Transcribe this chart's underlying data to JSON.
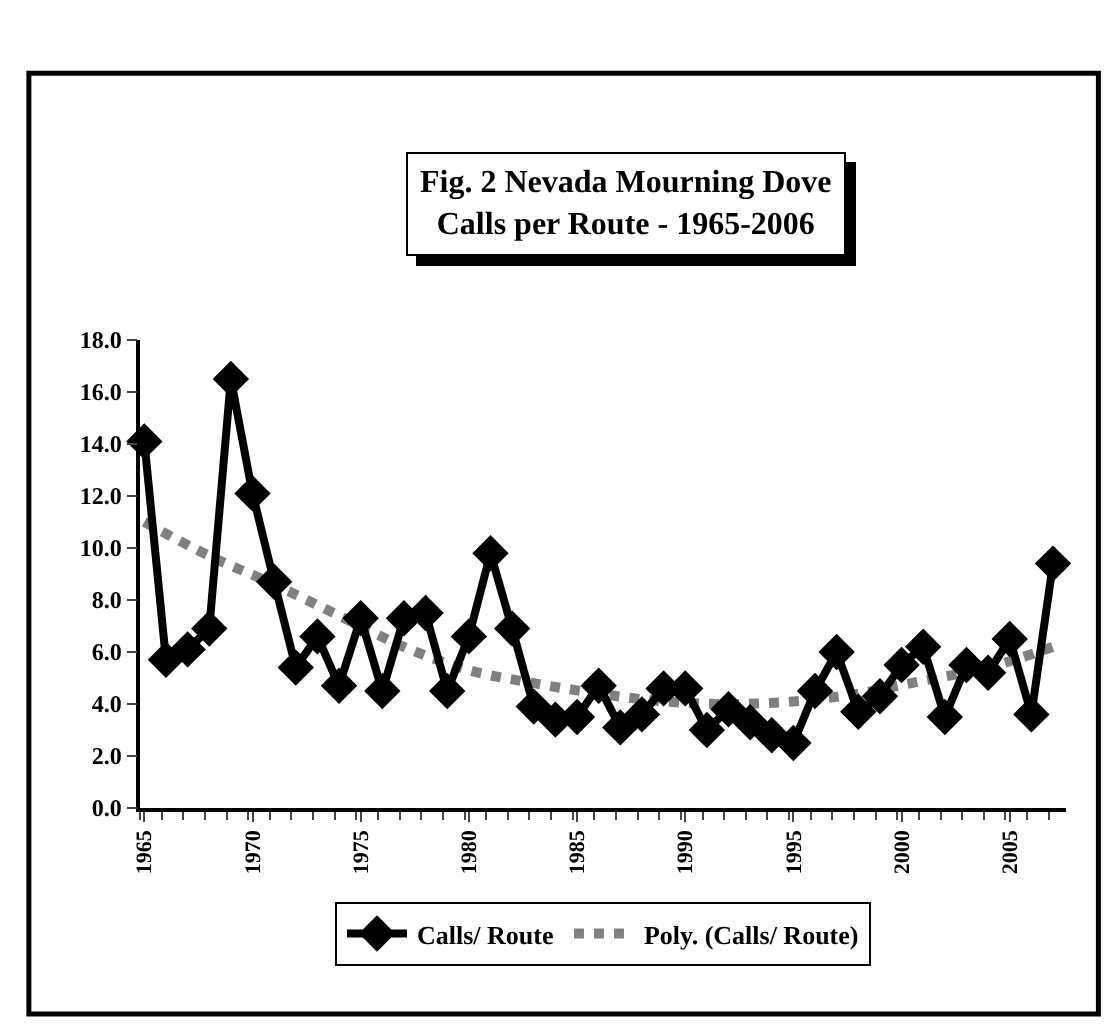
{
  "chart_data": {
    "type": "line",
    "title": "Fig. 2 Nevada Mourning Dove\nCalls per Route - 1965-2006",
    "x": [
      1965,
      1966,
      1967,
      1968,
      1969,
      1970,
      1971,
      1972,
      1973,
      1974,
      1975,
      1976,
      1977,
      1978,
      1979,
      1980,
      1981,
      1982,
      1983,
      1984,
      1985,
      1986,
      1987,
      1988,
      1989,
      1990,
      1991,
      1992,
      1993,
      1994,
      1995,
      1996,
      1997,
      1998,
      1999,
      2000,
      2001,
      2002,
      2003,
      2004,
      2005,
      2006,
      2007
    ],
    "series": [
      {
        "name": "Calls/ Route",
        "color": "#000000",
        "marker": "diamond",
        "line_style": "solid",
        "values": [
          14.1,
          5.7,
          6.1,
          6.9,
          16.5,
          12.1,
          8.7,
          5.4,
          6.6,
          4.7,
          7.3,
          4.5,
          7.3,
          7.5,
          4.5,
          6.6,
          9.8,
          6.9,
          3.9,
          3.4,
          3.5,
          4.7,
          3.1,
          3.6,
          4.6,
          4.6,
          3.0,
          3.8,
          3.3,
          2.8,
          2.5,
          4.5,
          6.0,
          3.7,
          4.3,
          5.5,
          6.2,
          3.5,
          5.5,
          5.2,
          6.5,
          3.6,
          9.4
        ]
      },
      {
        "name": "Poly. (Calls/ Route)",
        "color": "#808080",
        "marker": "none",
        "line_style": "dotted",
        "x": [
          1965,
          1968,
          1971,
          1974,
          1977,
          1980,
          1983,
          1986,
          1989,
          1992,
          1995,
          1998,
          2001,
          2004,
          2007
        ],
        "values": [
          11.0,
          9.7,
          8.6,
          7.4,
          6.2,
          5.3,
          4.8,
          4.4,
          4.1,
          4.0,
          4.1,
          4.4,
          4.9,
          5.4,
          6.2
        ]
      }
    ],
    "xlim": [
      1964.8,
      2007.6
    ],
    "xticks": [
      1965,
      1970,
      1975,
      1980,
      1985,
      1990,
      1995,
      2000,
      2005
    ],
    "ylim": [
      0,
      18
    ],
    "yticks": [
      {
        "value": 0,
        "label": "0.0"
      },
      {
        "value": 2,
        "label": "2.0"
      },
      {
        "value": 4,
        "label": "4.0"
      },
      {
        "value": 6,
        "label": "6.0"
      },
      {
        "value": 8,
        "label": "8.0"
      },
      {
        "value": 10,
        "label": "10.0"
      },
      {
        "value": 12,
        "label": "12.0"
      },
      {
        "value": 14,
        "label": "14.0"
      },
      {
        "value": 16,
        "label": "16.0"
      },
      {
        "value": 18,
        "label": "18.0"
      }
    ],
    "legend": "bottom"
  }
}
